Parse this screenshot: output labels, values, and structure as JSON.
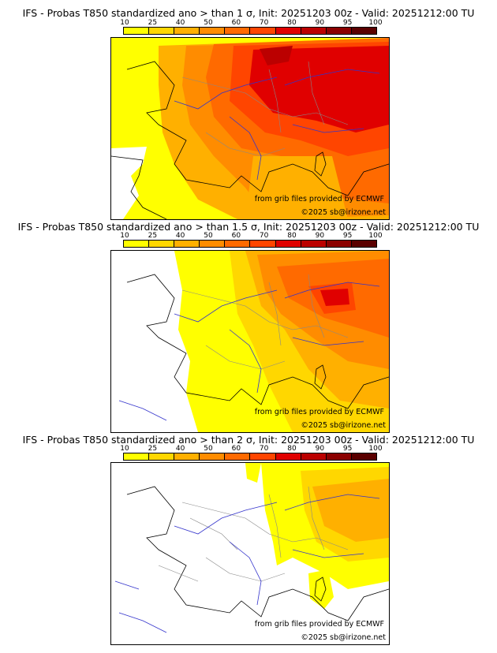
{
  "colors": {
    "scale": [
      "#ffff00",
      "#ffd700",
      "#ffb000",
      "#ff8c00",
      "#ff6a00",
      "#ff4500",
      "#e00000",
      "#bb0000",
      "#8b0000",
      "#5a0000"
    ],
    "border": "#888888",
    "river": "#3333cc",
    "coast": "#000000"
  },
  "scale": {
    "ticks": [
      "10",
      "25",
      "40",
      "50",
      "60",
      "70",
      "80",
      "90",
      "95",
      "100"
    ]
  },
  "panels": [
    {
      "title": "IFS - Probas T850  standardized ano > than 1 σ, Init: 20251203 00z - Valid: 20251212:00 TU",
      "credit_source": "from grib files provided by ECMWF",
      "credit_copyright": "©2025 sb@irizone.net"
    },
    {
      "title": "IFS - Probas T850  standardized ano > than 1.5 σ, Init: 20251203 00z - Valid: 20251212:00 TU",
      "credit_source": "from grib files provided by ECMWF",
      "credit_copyright": "©2025 sb@irizone.net"
    },
    {
      "title": "IFS - Probas T850  standardized ano > than 2 σ, Init: 20251203 00z - Valid: 20251212:00 TU",
      "credit_source": "from grib files provided by ECMWF",
      "credit_copyright": "©2025 sb@irizone.net"
    }
  ]
}
